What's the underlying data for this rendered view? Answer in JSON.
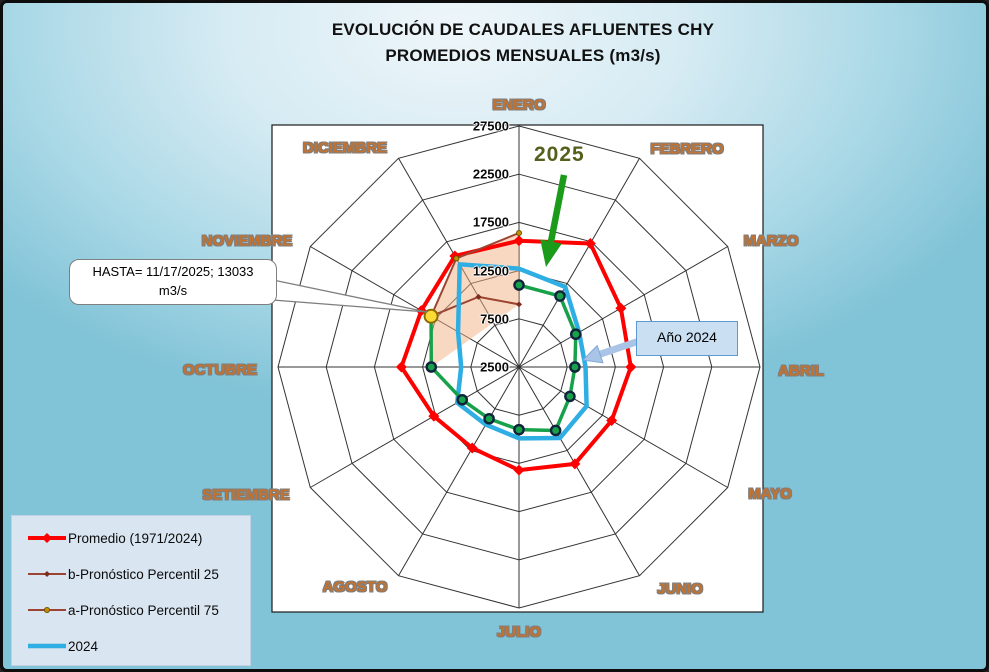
{
  "title": {
    "line1": "EVOLUCIÓN DE CAUDALES AFLUENTES CHY",
    "line2": "PROMEDIOS MENSUALES (m3/s)"
  },
  "chart_data": {
    "type": "radar",
    "title": "EVOLUCIÓN DE CAUDALES AFLUENTES CHY PROMEDIOS MENSUALES (m3/s)",
    "unit": "m3/s",
    "categories": [
      "ENERO",
      "FEBRERO",
      "MARZO",
      "ABRIL",
      "MAYO",
      "JUNIO",
      "JULIO",
      "AGOSTO",
      "SETIEMBRE",
      "OCTUBRE",
      "NOVIEMBRE",
      "DICIEMBRE"
    ],
    "axis": {
      "min": 2500,
      "max": 27500,
      "major_unit": 5000,
      "tick_labels": [
        "2500",
        "7500",
        "12500",
        "17500",
        "22500",
        "27500"
      ],
      "grid": true,
      "grid_color": "#333333"
    },
    "series": [
      {
        "name": "Promedio (1971/2024)",
        "color": "#ff0000",
        "width": 4,
        "marker": "diamond",
        "marker_color": "#ff0000",
        "closed": true,
        "values": [
          15600,
          17300,
          14700,
          14100,
          13600,
          14100,
          13200,
          12200,
          12700,
          14700,
          14200,
          15800
        ]
      },
      {
        "name": "b-Pronóstico Percentil 25",
        "color": "#9c4431",
        "width": 2,
        "marker": "small-diamond",
        "marker_color": "#7b2e20",
        "closed": false,
        "values": [
          9000,
          null,
          null,
          null,
          null,
          null,
          null,
          null,
          null,
          11600,
          13033,
          10900
        ]
      },
      {
        "name": "a-Pronóstico Percentil 75",
        "color": "#9c4431",
        "width": 2,
        "marker": "small-dot",
        "marker_color": "#bf8f00",
        "closed": false,
        "values": [
          16400,
          null,
          null,
          null,
          null,
          null,
          null,
          null,
          null,
          11600,
          13033,
          15500
        ]
      },
      {
        "name": "2024",
        "color": "#2faee3",
        "width": 4.5,
        "marker": "none",
        "marker_color": "#2faee3",
        "closed": true,
        "values": [
          12700,
          12100,
          9700,
          9400,
          10600,
          11000,
          9900,
          9400,
          9900,
          8500,
          9800,
          14800
        ]
      },
      {
        "name": "2025",
        "color": "#18a14b",
        "width": 3.5,
        "marker": "circle",
        "marker_color": "#18a14b",
        "marker_ring": "#10233b",
        "closed": false,
        "values": [
          11000,
          11000,
          9300,
          8300,
          8600,
          10100,
          9000,
          8700,
          9300,
          11600,
          13033,
          null
        ]
      }
    ],
    "forecast_band": {
      "color": "#f4b183",
      "opacity": 0.5,
      "months": [
        "OCTUBRE",
        "NOVIEMBRE",
        "DICIEMBRE",
        "ENERO"
      ]
    },
    "highlight_point": {
      "category": "NOVIEMBRE",
      "series": "2025",
      "value": 13033,
      "marker_fill": "#ffd935",
      "marker_ring": "#8a6d00"
    }
  },
  "annotations": {
    "hasta": {
      "line1": "HASTA= 11/17/2025; 13033",
      "line2": "m3/s"
    },
    "label_2025": "2025",
    "label_ano_2024": "Año 2024",
    "arrow_2025_color": "#1c9b1a",
    "arrow_2024_fill": "#a9c4e6",
    "arrow_2024_stroke": "#7fa8d8"
  },
  "legend": {
    "items": [
      {
        "label": "Promedio (1971/2024)",
        "line_color": "#ff0000",
        "line_width": 4,
        "marker": "diamond",
        "marker_color": "#ff0000"
      },
      {
        "label": "b-Pronóstico Percentil 25",
        "line_color": "#9c4431",
        "line_width": 2,
        "marker": "small-diamond",
        "marker_color": "#7b2e20"
      },
      {
        "label": "a-Pronóstico Percentil 75",
        "line_color": "#9c4431",
        "line_width": 2,
        "marker": "small-dot",
        "marker_color": "#bf8f00"
      },
      {
        "label": "2024",
        "line_color": "#2faee3",
        "line_width": 4.5,
        "marker": "none",
        "marker_color": "#2faee3"
      }
    ]
  }
}
